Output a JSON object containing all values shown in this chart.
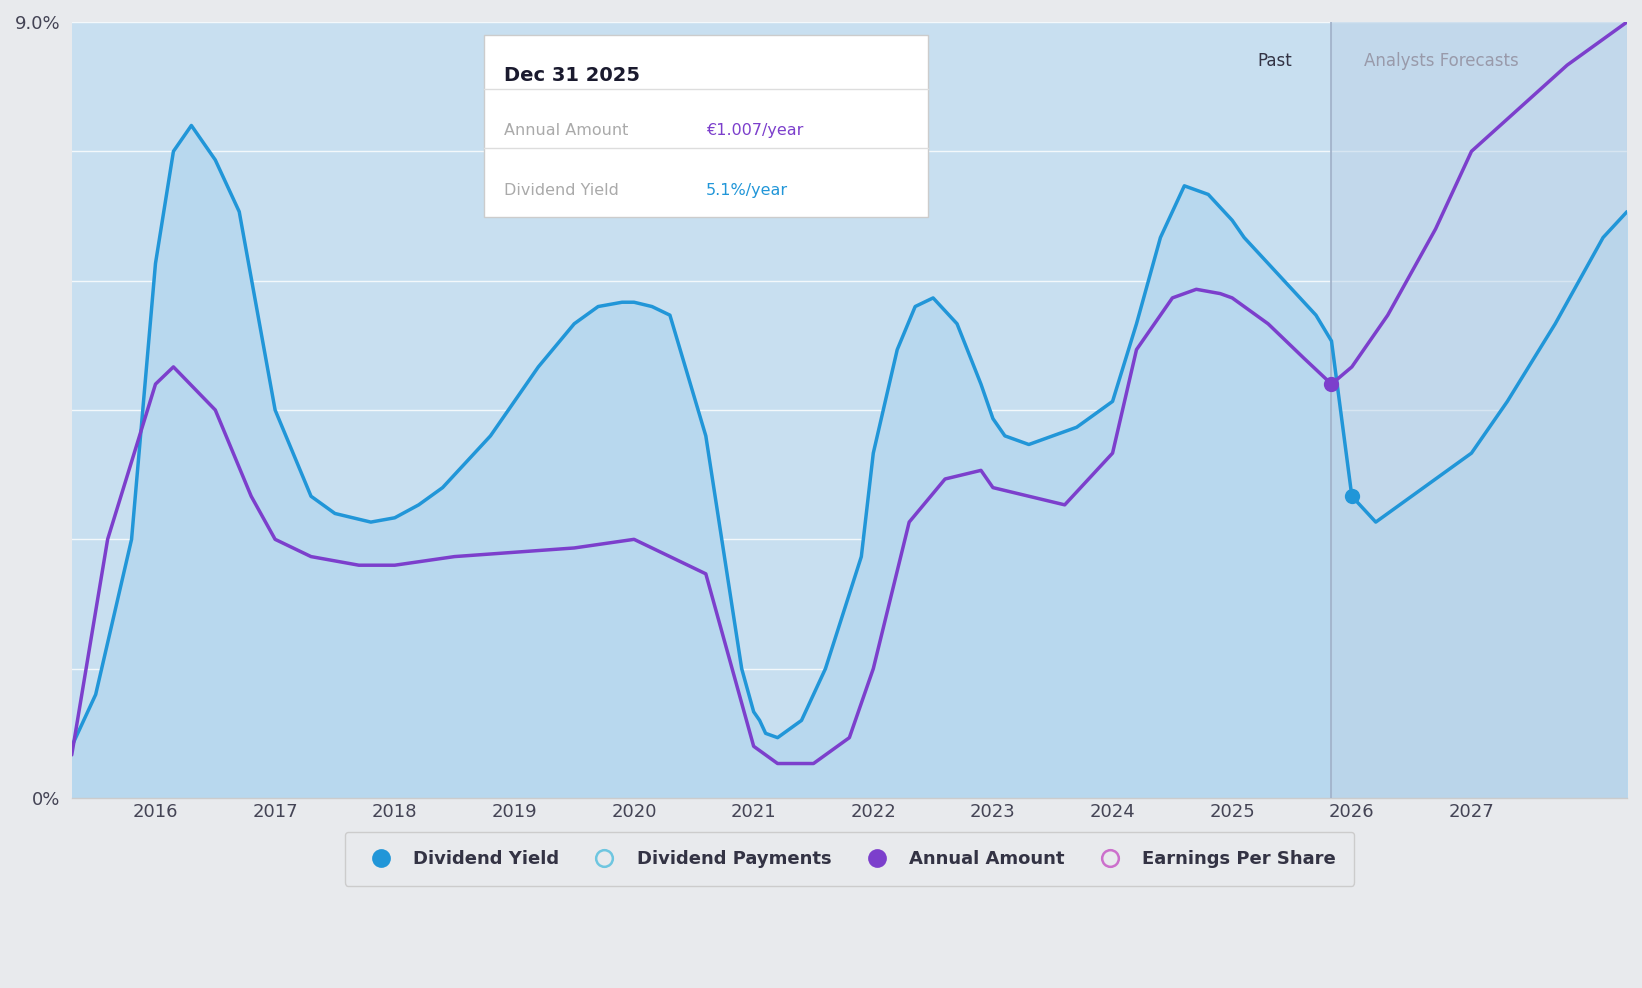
{
  "background_color": "#e8eaed",
  "plot_bg_color": "#c8dff0",
  "forecast_bg_color": "#bdd3e8",
  "grid_color": "#ffffff",
  "blue_line_color": "#2196d8",
  "blue_fill_color": "#b8d8ee",
  "purple_line_color": "#7c3fcc",
  "ylim": [
    0,
    9.0
  ],
  "xlim_start": 2015.3,
  "xlim_end": 2028.3,
  "forecast_start": 2025.83,
  "xtick_positions": [
    2016,
    2017,
    2018,
    2019,
    2020,
    2021,
    2022,
    2023,
    2024,
    2025,
    2026,
    2027
  ],
  "tooltip_title": "Dec 31 2025",
  "tooltip_row1_label": "Annual Amount",
  "tooltip_row1_value": "€1.007/year",
  "tooltip_row2_label": "Dividend Yield",
  "tooltip_row2_value": "5.1%/year",
  "tooltip_value1_color": "#7c3fcc",
  "tooltip_value2_color": "#2196d8",
  "blue_x": [
    2015.3,
    2015.5,
    2015.8,
    2016.0,
    2016.15,
    2016.3,
    2016.5,
    2016.7,
    2017.0,
    2017.3,
    2017.5,
    2017.8,
    2018.0,
    2018.2,
    2018.4,
    2018.6,
    2018.8,
    2019.0,
    2019.2,
    2019.5,
    2019.7,
    2019.9,
    2020.0,
    2020.15,
    2020.3,
    2020.6,
    2020.9,
    2021.0,
    2021.05,
    2021.1,
    2021.2,
    2021.4,
    2021.6,
    2021.9,
    2022.0,
    2022.2,
    2022.35,
    2022.5,
    2022.7,
    2022.9,
    2023.0,
    2023.1,
    2023.3,
    2023.5,
    2023.7,
    2023.9,
    2024.0,
    2024.2,
    2024.4,
    2024.6,
    2024.8,
    2025.0,
    2025.1,
    2025.3,
    2025.5,
    2025.7,
    2025.83,
    2026.0,
    2026.2,
    2026.4,
    2026.7,
    2027.0,
    2027.3,
    2027.7,
    2028.1,
    2028.3
  ],
  "blue_y": [
    0.6,
    1.2,
    3.0,
    6.2,
    7.5,
    7.8,
    7.4,
    6.8,
    4.5,
    3.5,
    3.3,
    3.2,
    3.25,
    3.4,
    3.6,
    3.9,
    4.2,
    4.6,
    5.0,
    5.5,
    5.7,
    5.75,
    5.75,
    5.7,
    5.6,
    4.2,
    1.5,
    1.0,
    0.9,
    0.75,
    0.7,
    0.9,
    1.5,
    2.8,
    4.0,
    5.2,
    5.7,
    5.8,
    5.5,
    4.8,
    4.4,
    4.2,
    4.1,
    4.2,
    4.3,
    4.5,
    4.6,
    5.5,
    6.5,
    7.1,
    7.0,
    6.7,
    6.5,
    6.2,
    5.9,
    5.6,
    5.3,
    3.5,
    3.2,
    3.4,
    3.7,
    4.0,
    4.6,
    5.5,
    6.5,
    6.8
  ],
  "purple_x": [
    2015.3,
    2015.6,
    2016.0,
    2016.15,
    2016.5,
    2016.8,
    2017.0,
    2017.3,
    2017.7,
    2018.0,
    2018.5,
    2019.0,
    2019.5,
    2020.0,
    2020.3,
    2020.6,
    2021.0,
    2021.2,
    2021.5,
    2021.8,
    2022.0,
    2022.3,
    2022.6,
    2022.9,
    2023.0,
    2023.3,
    2023.6,
    2024.0,
    2024.2,
    2024.5,
    2024.7,
    2024.9,
    2025.0,
    2025.3,
    2025.6,
    2025.83,
    2026.0,
    2026.3,
    2026.7,
    2027.0,
    2027.4,
    2027.8,
    2028.1,
    2028.3
  ],
  "purple_y": [
    0.5,
    3.0,
    4.8,
    5.0,
    4.5,
    3.5,
    3.0,
    2.8,
    2.7,
    2.7,
    2.8,
    2.85,
    2.9,
    3.0,
    2.8,
    2.6,
    0.6,
    0.4,
    0.4,
    0.7,
    1.5,
    3.2,
    3.7,
    3.8,
    3.6,
    3.5,
    3.4,
    4.0,
    5.2,
    5.8,
    5.9,
    5.85,
    5.8,
    5.5,
    5.1,
    4.8,
    5.0,
    5.6,
    6.6,
    7.5,
    8.0,
    8.5,
    8.8,
    9.0
  ],
  "blue_dot_x": 2026.0,
  "blue_dot_y": 3.5,
  "purple_dot_x": 2025.83,
  "purple_dot_y": 4.8,
  "legend_items": [
    {
      "label": "Dividend Yield",
      "color": "#2196d8",
      "marker": "o",
      "filled": true
    },
    {
      "label": "Dividend Payments",
      "color": "#6ec6e0",
      "marker": "o",
      "filled": false
    },
    {
      "label": "Annual Amount",
      "color": "#7c3fcc",
      "marker": "o",
      "filled": true
    },
    {
      "label": "Earnings Per Share",
      "color": "#cc70cc",
      "marker": "o",
      "filled": false
    }
  ]
}
